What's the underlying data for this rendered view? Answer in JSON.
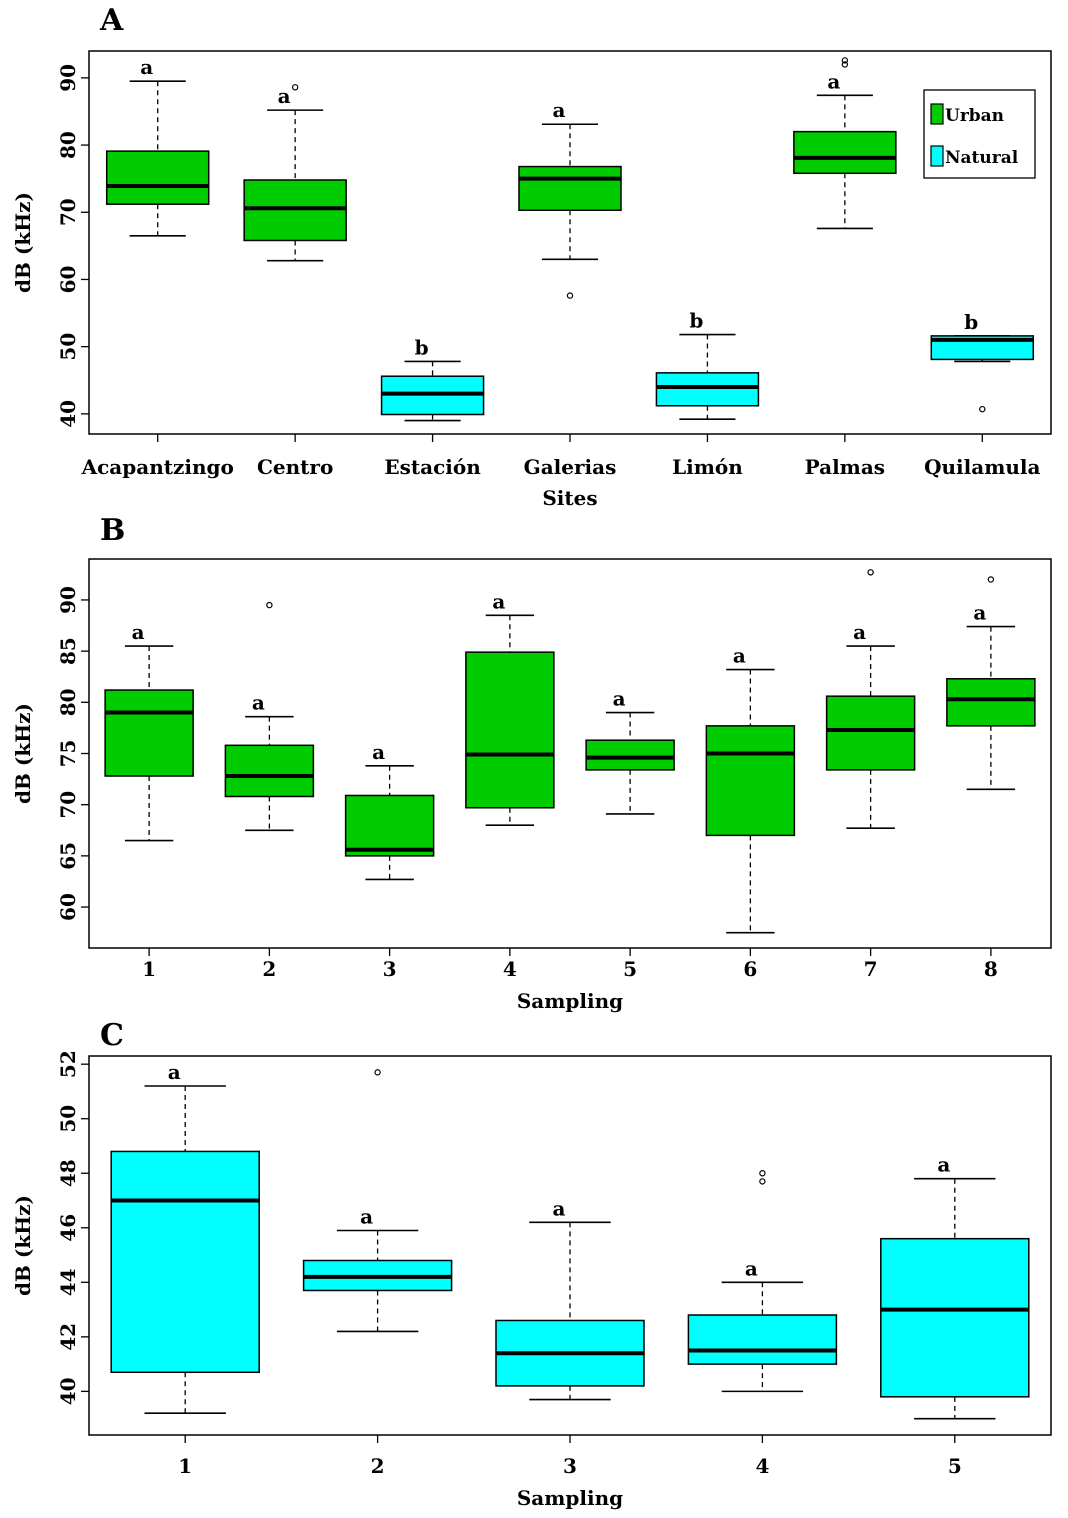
{
  "colors": {
    "urban": "#00cc00",
    "natural": "#00ffff",
    "frame": "#000000"
  },
  "chart_data": [
    {
      "type": "box",
      "panel_label": "A",
      "xlabel": "Sites",
      "ylabel": "dB (kHz)",
      "yticks": [
        40,
        50,
        60,
        70,
        80,
        90
      ],
      "ylim": [
        37.0,
        94.0
      ],
      "legend": {
        "position": "top-right",
        "entries": [
          {
            "label": "Urban",
            "color": "#00cc00"
          },
          {
            "label": "Natural",
            "color": "#00ffff"
          }
        ]
      },
      "categories": [
        "Acapantzingo",
        "Centro",
        "Estación",
        "Galerias",
        "Limón",
        "Palmas",
        "Quilamula"
      ],
      "boxes": [
        {
          "min": 66.5,
          "q1": 71.2,
          "median": 73.9,
          "q3": 79.1,
          "max": 89.5,
          "outliers": [],
          "letter": "a",
          "group": "urban"
        },
        {
          "min": 62.8,
          "q1": 65.8,
          "median": 70.6,
          "q3": 74.8,
          "max": 85.2,
          "outliers": [
            88.6
          ],
          "letter": "a",
          "group": "urban"
        },
        {
          "min": 39.0,
          "q1": 39.9,
          "median": 43.0,
          "q3": 45.6,
          "max": 47.8,
          "outliers": [],
          "letter": "b",
          "group": "natural"
        },
        {
          "min": 63.0,
          "q1": 70.3,
          "median": 75.0,
          "q3": 76.8,
          "max": 83.1,
          "outliers": [
            57.6
          ],
          "letter": "a",
          "group": "urban"
        },
        {
          "min": 39.2,
          "q1": 41.2,
          "median": 44.0,
          "q3": 46.1,
          "max": 51.8,
          "outliers": [],
          "letter": "b",
          "group": "natural"
        },
        {
          "min": 67.6,
          "q1": 75.8,
          "median": 78.1,
          "q3": 82.0,
          "max": 87.4,
          "outliers": [
            92.0,
            92.6
          ],
          "letter": "a",
          "group": "urban"
        },
        {
          "min": 47.8,
          "q1": 48.1,
          "median": 51.0,
          "q3": 51.6,
          "max": 51.6,
          "outliers": [
            40.7
          ],
          "letter": "b",
          "group": "natural"
        }
      ]
    },
    {
      "type": "box",
      "panel_label": "B",
      "xlabel": "Sampling",
      "ylabel": "dB (kHz)",
      "yticks": [
        60,
        65,
        70,
        75,
        80,
        85,
        90
      ],
      "ylim": [
        56.0,
        94.0
      ],
      "categories": [
        "1",
        "2",
        "3",
        "4",
        "5",
        "6",
        "7",
        "8"
      ],
      "boxes": [
        {
          "min": 66.5,
          "q1": 72.8,
          "median": 79.0,
          "q3": 81.2,
          "max": 85.5,
          "outliers": [],
          "letter": "a",
          "group": "urban"
        },
        {
          "min": 67.5,
          "q1": 70.8,
          "median": 72.8,
          "q3": 75.8,
          "max": 78.6,
          "outliers": [
            89.5
          ],
          "letter": "a",
          "group": "urban"
        },
        {
          "min": 62.7,
          "q1": 65.0,
          "median": 65.6,
          "q3": 70.9,
          "max": 73.8,
          "outliers": [],
          "letter": "a",
          "group": "urban"
        },
        {
          "min": 68.0,
          "q1": 69.7,
          "median": 74.9,
          "q3": 84.9,
          "max": 88.5,
          "outliers": [],
          "letter": "a",
          "group": "urban"
        },
        {
          "min": 69.1,
          "q1": 73.4,
          "median": 74.6,
          "q3": 76.3,
          "max": 79.0,
          "outliers": [],
          "letter": "a",
          "group": "urban"
        },
        {
          "min": 57.5,
          "q1": 67.0,
          "median": 75.0,
          "q3": 77.7,
          "max": 83.2,
          "outliers": [],
          "letter": "a",
          "group": "urban"
        },
        {
          "min": 67.7,
          "q1": 73.4,
          "median": 77.3,
          "q3": 80.6,
          "max": 85.5,
          "outliers": [
            92.7
          ],
          "letter": "a",
          "group": "urban"
        },
        {
          "min": 71.5,
          "q1": 77.7,
          "median": 80.3,
          "q3": 82.3,
          "max": 87.4,
          "outliers": [
            92.0
          ],
          "letter": "a",
          "group": "urban"
        }
      ]
    },
    {
      "type": "box",
      "panel_label": "C",
      "xlabel": "Sampling",
      "ylabel": "dB (kHz)",
      "yticks": [
        40,
        42,
        44,
        46,
        48,
        50,
        52
      ],
      "ylim": [
        38.4,
        52.3
      ],
      "categories": [
        "1",
        "2",
        "3",
        "4",
        "5"
      ],
      "boxes": [
        {
          "min": 39.2,
          "q1": 40.7,
          "median": 47.0,
          "q3": 48.8,
          "max": 51.2,
          "outliers": [],
          "letter": "a",
          "group": "natural"
        },
        {
          "min": 42.2,
          "q1": 43.7,
          "median": 44.2,
          "q3": 44.8,
          "max": 45.9,
          "outliers": [
            51.7
          ],
          "letter": "a",
          "group": "natural"
        },
        {
          "min": 39.7,
          "q1": 40.2,
          "median": 41.4,
          "q3": 42.6,
          "max": 46.2,
          "outliers": [],
          "letter": "a",
          "group": "natural"
        },
        {
          "min": 40.0,
          "q1": 41.0,
          "median": 41.5,
          "q3": 42.8,
          "max": 44.0,
          "outliers": [
            47.7,
            48.0
          ],
          "letter": "a",
          "group": "natural"
        },
        {
          "min": 39.0,
          "q1": 39.8,
          "median": 43.0,
          "q3": 45.6,
          "max": 47.8,
          "outliers": [],
          "letter": "a",
          "group": "natural"
        }
      ]
    }
  ]
}
